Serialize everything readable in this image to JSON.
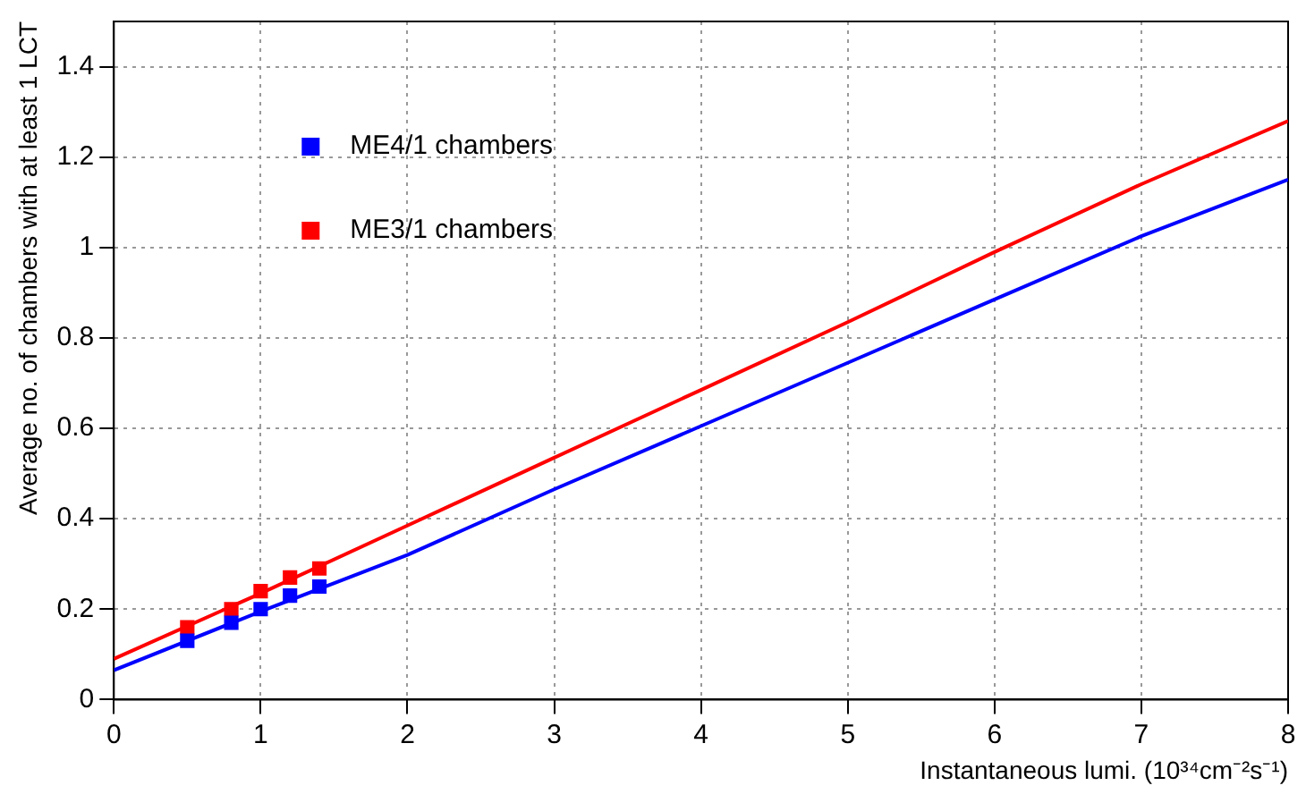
{
  "chart_data": {
    "type": "line",
    "xlabel": "Instantaneous lumi. (10³⁴cm⁻²s⁻¹)",
    "ylabel": "Average no. of chambers with at least 1 LCT",
    "series": [
      {
        "color": "#ff0000",
        "x": [
          0,
          1,
          2,
          3,
          4,
          5,
          6,
          7,
          8
        ],
        "values": [
          0.09,
          0.235,
          0.385,
          0.535,
          0.685,
          0.835,
          0.99,
          1.14,
          1.28
        ]
      },
      {
        "color": "#0000ff",
        "x": [
          0,
          1,
          2,
          3,
          4,
          5,
          6,
          7,
          8
        ],
        "values": [
          0.065,
          0.195,
          0.32,
          0.465,
          0.605,
          0.745,
          0.885,
          1.025,
          1.15
        ]
      },
      {
        "type": "scatter",
        "name": "ME4/1 chambers",
        "color": "#0000ff",
        "marker": "square",
        "x": [
          0.5,
          0.8,
          1.0,
          1.2,
          1.4
        ],
        "values": [
          0.13,
          0.17,
          0.2,
          0.23,
          0.25
        ]
      },
      {
        "type": "scatter",
        "name": "ME3/1 chambers",
        "color": "#ff0000",
        "marker": "square",
        "x": [
          0.5,
          0.8,
          1.0,
          1.2,
          1.4
        ],
        "values": [
          0.16,
          0.2,
          0.24,
          0.27,
          0.29
        ]
      }
    ],
    "xlim": [
      0,
      8
    ],
    "xticks": [
      0,
      1,
      2,
      3,
      4,
      5,
      6,
      7,
      8
    ],
    "ylim": [
      0,
      1.5
    ],
    "yticks": [
      0,
      0.2,
      0.4,
      0.6,
      0.8,
      1,
      1.2,
      1.4
    ],
    "grid": true,
    "legend": "top left",
    "line_style": "solid"
  }
}
